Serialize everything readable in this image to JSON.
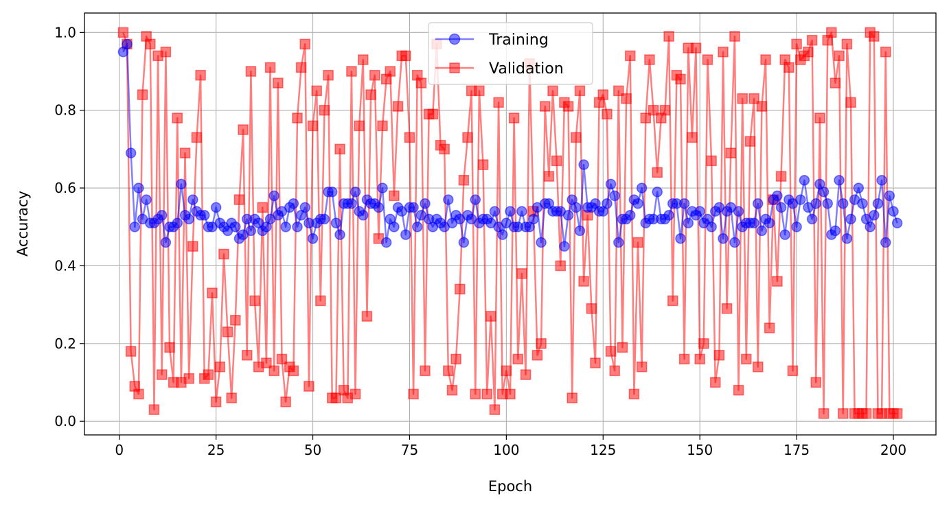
{
  "chart_data": {
    "type": "line",
    "xlabel": "Epoch",
    "ylabel": "Accuracy",
    "xlim": [
      -9,
      211
    ],
    "ylim": [
      -0.035,
      1.05
    ],
    "xticks": [
      0,
      25,
      50,
      75,
      100,
      125,
      150,
      175,
      200
    ],
    "yticks": [
      0.0,
      0.2,
      0.4,
      0.6,
      0.8,
      1.0
    ],
    "xtick_labels": [
      "0",
      "25",
      "50",
      "75",
      "100",
      "125",
      "150",
      "175",
      "200"
    ],
    "ytick_labels": [
      "0.0",
      "0.2",
      "0.4",
      "0.6",
      "0.8",
      "1.0"
    ],
    "grid": true,
    "legend": {
      "position": "top-center"
    },
    "x": [
      1,
      2,
      3,
      4,
      5,
      6,
      7,
      8,
      9,
      10,
      11,
      12,
      13,
      14,
      15,
      16,
      17,
      18,
      19,
      20,
      21,
      22,
      23,
      24,
      25,
      26,
      27,
      28,
      29,
      30,
      31,
      32,
      33,
      34,
      35,
      36,
      37,
      38,
      39,
      40,
      41,
      42,
      43,
      44,
      45,
      46,
      47,
      48,
      49,
      50,
      51,
      52,
      53,
      54,
      55,
      56,
      57,
      58,
      59,
      60,
      61,
      62,
      63,
      64,
      65,
      66,
      67,
      68,
      69,
      70,
      71,
      72,
      73,
      74,
      75,
      76,
      77,
      78,
      79,
      80,
      81,
      82,
      83,
      84,
      85,
      86,
      87,
      88,
      89,
      90,
      91,
      92,
      93,
      94,
      95,
      96,
      97,
      98,
      99,
      100,
      101,
      102,
      103,
      104,
      105,
      106,
      107,
      108,
      109,
      110,
      111,
      112,
      113,
      114,
      115,
      116,
      117,
      118,
      119,
      120,
      121,
      122,
      123,
      124,
      125,
      126,
      127,
      128,
      129,
      130,
      131,
      132,
      133,
      134,
      135,
      136,
      137,
      138,
      139,
      140,
      141,
      142,
      143,
      144,
      145,
      146,
      147,
      148,
      149,
      150,
      151,
      152,
      153,
      154,
      155,
      156,
      157,
      158,
      159,
      160,
      161,
      162,
      163,
      164,
      165,
      166,
      167,
      168,
      169,
      170,
      171,
      172,
      173,
      174,
      175,
      176,
      177,
      178,
      179,
      180,
      181,
      182,
      183,
      184,
      185,
      186,
      187,
      188,
      189,
      190,
      191,
      192,
      193,
      194,
      195,
      196,
      197,
      198,
      199,
      200,
      201
    ],
    "series": [
      {
        "name": "Training",
        "color": "#0000ff",
        "marker": "circle",
        "values": [
          0.95,
          0.97,
          0.69,
          0.5,
          0.6,
          0.52,
          0.57,
          0.51,
          0.51,
          0.52,
          0.53,
          0.46,
          0.5,
          0.5,
          0.51,
          0.61,
          0.53,
          0.52,
          0.57,
          0.54,
          0.53,
          0.53,
          0.5,
          0.5,
          0.55,
          0.51,
          0.5,
          0.49,
          0.51,
          0.5,
          0.47,
          0.48,
          0.52,
          0.49,
          0.52,
          0.51,
          0.49,
          0.5,
          0.52,
          0.58,
          0.53,
          0.54,
          0.5,
          0.55,
          0.56,
          0.5,
          0.53,
          0.55,
          0.51,
          0.47,
          0.51,
          0.52,
          0.52,
          0.59,
          0.59,
          0.51,
          0.48,
          0.56,
          0.56,
          0.56,
          0.59,
          0.54,
          0.53,
          0.57,
          0.56,
          0.56,
          0.55,
          0.6,
          0.46,
          0.52,
          0.5,
          0.55,
          0.54,
          0.48,
          0.55,
          0.55,
          0.5,
          0.53,
          0.56,
          0.52,
          0.5,
          0.52,
          0.51,
          0.5,
          0.57,
          0.51,
          0.53,
          0.52,
          0.46,
          0.53,
          0.52,
          0.57,
          0.51,
          0.52,
          0.52,
          0.51,
          0.54,
          0.5,
          0.48,
          0.51,
          0.54,
          0.5,
          0.5,
          0.54,
          0.5,
          0.5,
          0.52,
          0.55,
          0.46,
          0.56,
          0.56,
          0.54,
          0.54,
          0.54,
          0.45,
          0.53,
          0.57,
          0.55,
          0.49,
          0.66,
          0.55,
          0.55,
          0.56,
          0.54,
          0.54,
          0.56,
          0.61,
          0.58,
          0.46,
          0.52,
          0.52,
          0.53,
          0.57,
          0.56,
          0.6,
          0.51,
          0.52,
          0.52,
          0.59,
          0.52,
          0.52,
          0.53,
          0.56,
          0.56,
          0.47,
          0.56,
          0.51,
          0.54,
          0.53,
          0.54,
          0.51,
          0.52,
          0.5,
          0.54,
          0.55,
          0.47,
          0.54,
          0.55,
          0.46,
          0.54,
          0.5,
          0.51,
          0.51,
          0.51,
          0.56,
          0.49,
          0.52,
          0.51,
          0.57,
          0.58,
          0.55,
          0.48,
          0.57,
          0.56,
          0.5,
          0.57,
          0.62,
          0.55,
          0.52,
          0.56,
          0.61,
          0.59,
          0.56,
          0.48,
          0.49,
          0.62,
          0.56,
          0.47,
          0.52,
          0.57,
          0.6,
          0.56,
          0.52,
          0.5,
          0.53,
          0.56,
          0.62,
          0.46,
          0.58,
          0.54,
          0.51
        ]
      },
      {
        "name": "Validation",
        "color": "#ff0000",
        "marker": "square",
        "values": [
          1.0,
          0.97,
          0.18,
          0.09,
          0.07,
          0.84,
          0.99,
          0.97,
          0.03,
          0.94,
          0.12,
          0.95,
          0.19,
          0.1,
          0.78,
          0.1,
          0.69,
          0.11,
          0.45,
          0.73,
          0.89,
          0.11,
          0.12,
          0.33,
          0.05,
          0.14,
          0.43,
          0.23,
          0.06,
          0.26,
          0.57,
          0.75,
          0.17,
          0.9,
          0.31,
          0.14,
          0.55,
          0.15,
          0.91,
          0.13,
          0.87,
          0.16,
          0.05,
          0.14,
          0.13,
          0.78,
          0.91,
          0.97,
          0.09,
          0.76,
          0.85,
          0.31,
          0.8,
          0.89,
          0.06,
          0.06,
          0.7,
          0.08,
          0.06,
          0.9,
          0.07,
          0.76,
          0.93,
          0.27,
          0.84,
          0.89,
          0.47,
          0.76,
          0.88,
          0.9,
          0.58,
          0.81,
          0.94,
          0.94,
          0.73,
          0.07,
          0.89,
          0.87,
          0.13,
          0.79,
          0.79,
          0.97,
          0.71,
          0.7,
          0.13,
          0.08,
          0.16,
          0.34,
          0.62,
          0.73,
          0.85,
          0.07,
          0.85,
          0.66,
          0.07,
          0.27,
          0.03,
          0.82,
          0.07,
          0.13,
          0.07,
          0.78,
          0.16,
          0.38,
          0.12,
          0.92,
          0.54,
          0.17,
          0.2,
          0.81,
          0.63,
          0.85,
          0.67,
          0.4,
          0.82,
          0.81,
          0.06,
          0.73,
          0.85,
          0.36,
          0.53,
          0.29,
          0.15,
          0.82,
          0.84,
          0.79,
          0.18,
          0.13,
          0.85,
          0.19,
          0.83,
          0.94,
          0.07,
          0.46,
          0.14,
          0.78,
          0.93,
          0.8,
          0.64,
          0.78,
          0.8,
          0.99,
          0.31,
          0.89,
          0.88,
          0.16,
          0.96,
          0.73,
          0.96,
          0.16,
          0.2,
          0.93,
          0.67,
          0.1,
          0.17,
          0.95,
          0.29,
          0.69,
          0.99,
          0.08,
          0.83,
          0.16,
          0.72,
          0.83,
          0.14,
          0.81,
          0.93,
          0.24,
          0.57,
          0.36,
          0.63,
          0.93,
          0.91,
          0.13,
          0.97,
          0.93,
          0.94,
          0.95,
          0.98,
          0.1,
          0.78,
          0.02,
          0.98,
          1.0,
          0.87,
          0.94,
          0.02,
          0.97,
          0.82,
          0.02,
          0.02,
          0.02,
          0.02,
          1.0,
          0.99,
          0.02,
          0.02,
          0.95,
          0.02,
          0.02,
          0.02
        ]
      }
    ]
  }
}
